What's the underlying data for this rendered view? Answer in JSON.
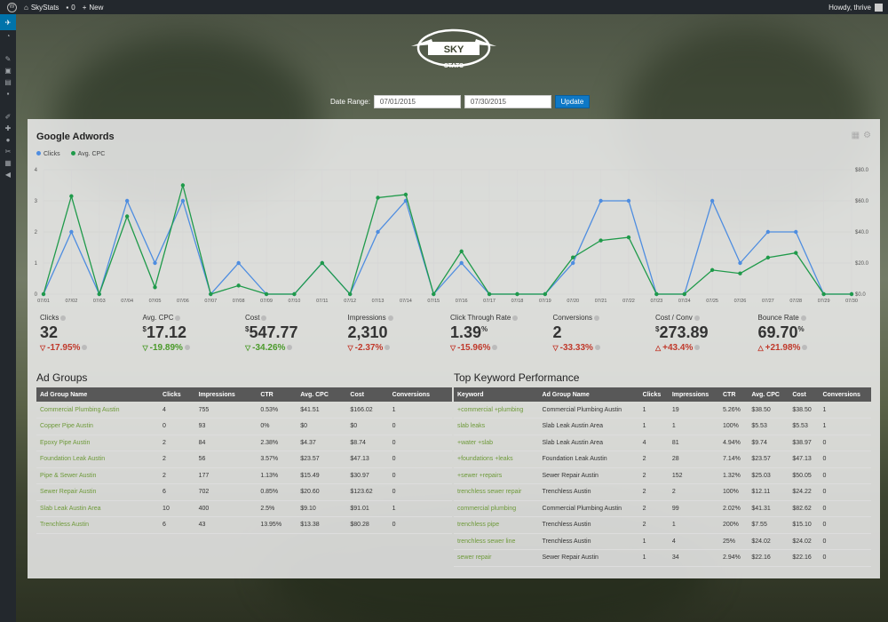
{
  "adminbar": {
    "site_name": "SkyStats",
    "comments_count": "0",
    "new_label": "New",
    "greeting": "Howdy, thrive"
  },
  "logo": {
    "word1": "SKY",
    "word2": "STATS"
  },
  "date_range": {
    "label": "Date Range:",
    "start": "07/01/2015",
    "end": "07/30/2015",
    "button": "Update"
  },
  "panel": {
    "title": "Google Adwords"
  },
  "chart_data": {
    "type": "line",
    "x": [
      "07/01",
      "07/02",
      "07/03",
      "07/04",
      "07/05",
      "07/06",
      "07/07",
      "07/08",
      "07/09",
      "07/10",
      "07/11",
      "07/12",
      "07/13",
      "07/14",
      "07/15",
      "07/16",
      "07/17",
      "07/18",
      "07/19",
      "07/20",
      "07/21",
      "07/22",
      "07/23",
      "07/24",
      "07/25",
      "07/26",
      "07/27",
      "07/28",
      "07/29",
      "07/30"
    ],
    "series": [
      {
        "name": "Clicks",
        "color": "#4e8de0",
        "axis": "left",
        "values": [
          0,
          2,
          0,
          3,
          1,
          3,
          0,
          1,
          0,
          0,
          1,
          0,
          2,
          3,
          0,
          1,
          0,
          0,
          0,
          1,
          3,
          3,
          0,
          0,
          3,
          1,
          2,
          2,
          0,
          0
        ]
      },
      {
        "name": "Avg. CPC",
        "color": "#1f9a4a",
        "axis": "right",
        "values": [
          0,
          63,
          0,
          50,
          4.4,
          70,
          0,
          5.5,
          0,
          0,
          20,
          0,
          62,
          64,
          0,
          27.5,
          0,
          0,
          0,
          23.6,
          34.5,
          36.5,
          0,
          0,
          15.5,
          13.3,
          23.5,
          26.5,
          0,
          0
        ]
      }
    ],
    "ylim_left": [
      0,
      4
    ],
    "yticks_left": [
      "0",
      "1",
      "2",
      "3",
      "4"
    ],
    "ylim_right": [
      0,
      80
    ],
    "yticks_right": [
      "$0.0",
      "$20.0",
      "$40.0",
      "$60.0",
      "$80.0"
    ],
    "grid": true,
    "legend": "top-left"
  },
  "stats": [
    {
      "label": "Clicks",
      "prefix": "",
      "value": "32",
      "suffix": "",
      "change": "-17.95%",
      "dir": "down",
      "good": false
    },
    {
      "label": "Avg. CPC",
      "prefix": "$",
      "value": "17.12",
      "suffix": "",
      "change": "-19.89%",
      "dir": "down",
      "good": true
    },
    {
      "label": "Cost",
      "prefix": "$",
      "value": "547.77",
      "suffix": "",
      "change": "-34.26%",
      "dir": "down",
      "good": true
    },
    {
      "label": "Impressions",
      "prefix": "",
      "value": "2,310",
      "suffix": "",
      "change": "-2.37%",
      "dir": "down",
      "good": false
    },
    {
      "label": "Click Through Rate",
      "prefix": "",
      "value": "1.39",
      "suffix": "%",
      "change": "-15.96%",
      "dir": "down",
      "good": false
    },
    {
      "label": "Conversions",
      "prefix": "",
      "value": "2",
      "suffix": "",
      "change": "-33.33%",
      "dir": "down",
      "good": false
    },
    {
      "label": "Cost / Conv",
      "prefix": "$",
      "value": "273.89",
      "suffix": "",
      "change": "+43.4%",
      "dir": "up",
      "good": false
    },
    {
      "label": "Bounce Rate",
      "prefix": "",
      "value": "69.70",
      "suffix": "%",
      "change": "+21.98%",
      "dir": "up",
      "good": false
    }
  ],
  "ad_groups": {
    "title": "Ad Groups",
    "headers": [
      "Ad Group Name",
      "Clicks",
      "Impressions",
      "CTR",
      "Avg. CPC",
      "Cost",
      "Conversions"
    ],
    "rows": [
      [
        "Commercial Plumbing Austin",
        "4",
        "755",
        "0.53%",
        "$41.51",
        "$166.02",
        "1"
      ],
      [
        "Copper Pipe Austin",
        "0",
        "93",
        "0%",
        "$0",
        "$0",
        "0"
      ],
      [
        "Epoxy Pipe Austin",
        "2",
        "84",
        "2.38%",
        "$4.37",
        "$8.74",
        "0"
      ],
      [
        "Foundation Leak Austin",
        "2",
        "56",
        "3.57%",
        "$23.57",
        "$47.13",
        "0"
      ],
      [
        "Pipe & Sewer Austin",
        "2",
        "177",
        "1.13%",
        "$15.49",
        "$30.97",
        "0"
      ],
      [
        "Sewer Repair Austin",
        "6",
        "702",
        "0.85%",
        "$20.60",
        "$123.62",
        "0"
      ],
      [
        "Slab Leak Austin Area",
        "10",
        "400",
        "2.5%",
        "$9.10",
        "$91.01",
        "1"
      ],
      [
        "Trenchless Austin",
        "6",
        "43",
        "13.95%",
        "$13.38",
        "$80.28",
        "0"
      ]
    ]
  },
  "keywords": {
    "title": "Top Keyword Performance",
    "headers": [
      "Keyword",
      "Ad Group Name",
      "Clicks",
      "Impressions",
      "CTR",
      "Avg. CPC",
      "Cost",
      "Conversions"
    ],
    "rows": [
      [
        "+commercial +plumbing",
        "Commercial Plumbing Austin",
        "1",
        "19",
        "5.26%",
        "$38.50",
        "$38.50",
        "1"
      ],
      [
        "slab leaks",
        "Slab Leak Austin Area",
        "1",
        "1",
        "100%",
        "$5.53",
        "$5.53",
        "1"
      ],
      [
        "+water +slab",
        "Slab Leak Austin Area",
        "4",
        "81",
        "4.94%",
        "$9.74",
        "$38.97",
        "0"
      ],
      [
        "+foundations +leaks",
        "Foundation Leak Austin",
        "2",
        "28",
        "7.14%",
        "$23.57",
        "$47.13",
        "0"
      ],
      [
        "+sewer +repairs",
        "Sewer Repair Austin",
        "2",
        "152",
        "1.32%",
        "$25.03",
        "$50.05",
        "0"
      ],
      [
        "trenchless sewer repair",
        "Trenchless Austin",
        "2",
        "2",
        "100%",
        "$12.11",
        "$24.22",
        "0"
      ],
      [
        "commercial plumbing",
        "Commercial Plumbing Austin",
        "2",
        "99",
        "2.02%",
        "$41.31",
        "$82.62",
        "0"
      ],
      [
        "trenchless pipe",
        "Trenchless Austin",
        "2",
        "1",
        "200%",
        "$7.55",
        "$15.10",
        "0"
      ],
      [
        "trenchless sewer line",
        "Trenchless Austin",
        "1",
        "4",
        "25%",
        "$24.02",
        "$24.02",
        "0"
      ],
      [
        "sewer repair",
        "Sewer Repair Austin",
        "1",
        "34",
        "2.94%",
        "$22.16",
        "$22.16",
        "0"
      ]
    ]
  }
}
